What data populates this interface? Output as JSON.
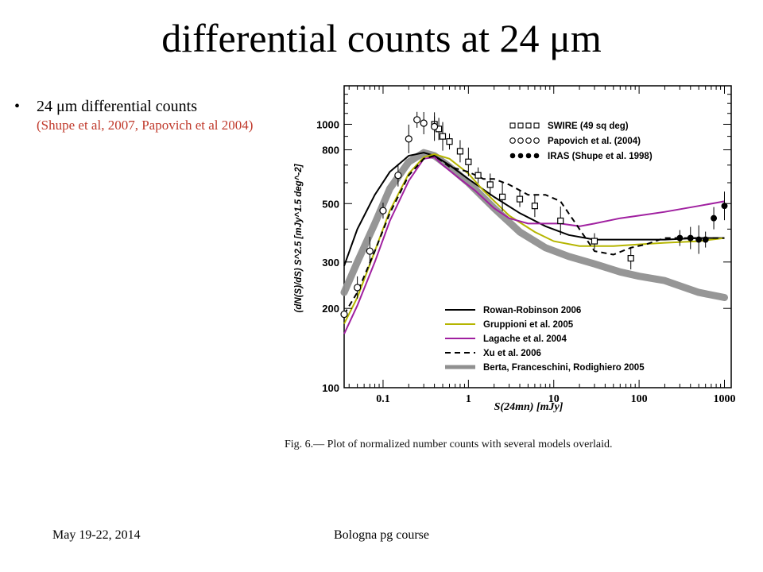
{
  "slide": {
    "title": "differential counts at 24 μm",
    "bullet": "24 μm differential counts",
    "citation": "(Shupe et al, 2007, Papovich et al 2004)",
    "footer_left": "May 19-22, 2014",
    "footer_center": "Bologna pg course",
    "caption": "Fig. 6.— Plot of normalized number counts with several models overlaid.",
    "bullet_glyph": "•"
  },
  "chart_data": {
    "type": "line",
    "xlabel": "S(24mn) [mJy]",
    "ylabel": "(dN(S)/dS) S^2.5 [mJy^1.5 deg^-2]",
    "x_scale": "log",
    "y_scale": "log",
    "xlim": [
      0.035,
      1200
    ],
    "ylim": [
      100,
      1400
    ],
    "x_ticks": [
      0.1,
      1,
      10,
      100,
      1000
    ],
    "x_tick_labels": [
      "0.1",
      "1",
      "10",
      "100",
      "1000"
    ],
    "y_ticks": [
      100,
      200,
      300,
      500,
      800,
      1000
    ],
    "y_tick_labels": [
      "100",
      "200",
      "300",
      "500",
      "800",
      "1000"
    ],
    "series": [
      {
        "name": "Rowan-Robinson 2006",
        "color": "#000000",
        "style": "solid",
        "x": [
          0.035,
          0.05,
          0.08,
          0.12,
          0.2,
          0.3,
          0.4,
          0.6,
          1,
          2,
          4,
          8,
          15,
          30,
          60,
          100,
          200,
          500,
          1000
        ],
        "y": [
          290,
          400,
          540,
          660,
          760,
          780,
          760,
          700,
          620,
          530,
          460,
          410,
          380,
          365,
          365,
          365,
          365,
          370,
          370
        ]
      },
      {
        "name": "Gruppioni et al. 2005",
        "color": "#b5b500",
        "style": "solid",
        "x": [
          0.035,
          0.05,
          0.08,
          0.12,
          0.2,
          0.3,
          0.4,
          0.6,
          1,
          1.5,
          3,
          6,
          10,
          20,
          50,
          100,
          200,
          500,
          1000
        ],
        "y": [
          175,
          220,
          330,
          470,
          650,
          750,
          770,
          740,
          650,
          560,
          450,
          390,
          360,
          345,
          345,
          350,
          355,
          360,
          370
        ]
      },
      {
        "name": "Lagache et al. 2004",
        "color": "#a020a0",
        "style": "solid",
        "x": [
          0.035,
          0.05,
          0.08,
          0.12,
          0.2,
          0.3,
          0.4,
          0.5,
          0.8,
          1.2,
          2,
          3,
          5,
          8,
          12,
          20,
          30,
          60,
          100,
          200,
          500,
          1000
        ],
        "y": [
          160,
          205,
          300,
          430,
          610,
          740,
          750,
          700,
          620,
          560,
          480,
          440,
          420,
          420,
          420,
          410,
          420,
          440,
          450,
          465,
          490,
          510
        ]
      },
      {
        "name": "Xu et al. 2006",
        "color": "#000000",
        "style": "dashed",
        "x": [
          0.035,
          0.05,
          0.08,
          0.12,
          0.2,
          0.3,
          0.4,
          0.6,
          1,
          1.5,
          2,
          3,
          5,
          8,
          12,
          20,
          30,
          50,
          80,
          120,
          200,
          500,
          1000
        ],
        "y": [
          190,
          230,
          330,
          460,
          640,
          740,
          760,
          690,
          660,
          620,
          620,
          590,
          540,
          540,
          510,
          400,
          330,
          320,
          340,
          350,
          370,
          370,
          370
        ]
      },
      {
        "name": "Berta, Franceschini, Rodighiero 2005",
        "color": "#909090",
        "style": "band",
        "x": [
          0.035,
          0.05,
          0.08,
          0.12,
          0.2,
          0.3,
          0.4,
          0.6,
          1,
          2,
          4,
          8,
          15,
          30,
          60,
          100,
          200,
          500,
          1000
        ],
        "y": [
          230,
          300,
          420,
          570,
          720,
          780,
          760,
          690,
          600,
          480,
          390,
          340,
          315,
          295,
          275,
          265,
          255,
          230,
          220
        ]
      },
      {
        "name": "SWIRE (49 sq deg)",
        "color": "#000000",
        "style": "open-square",
        "x": [
          0.4,
          0.45,
          0.5,
          0.6,
          0.8,
          1.0,
          1.3,
          1.8,
          2.5,
          4,
          6,
          12,
          30,
          80
        ],
        "y": [
          1000,
          960,
          900,
          860,
          790,
          720,
          640,
          590,
          530,
          520,
          490,
          430,
          360,
          310
        ]
      },
      {
        "name": "Papovich et al. (2004)",
        "color": "#000000",
        "style": "open-circle",
        "x": [
          0.035,
          0.05,
          0.07,
          0.1,
          0.15,
          0.2,
          0.25,
          0.3,
          0.4
        ],
        "y": [
          190,
          240,
          330,
          470,
          640,
          880,
          1040,
          1010,
          980
        ]
      },
      {
        "name": "IRAS (Shupe et al. 1998)",
        "color": "#000000",
        "style": "filled-circle",
        "x": [
          300,
          400,
          500,
          600,
          750,
          1000
        ],
        "y": [
          370,
          370,
          365,
          365,
          440,
          490
        ]
      }
    ],
    "legend_markers": [
      {
        "label": "SWIRE (49 sq deg)",
        "marker": "open-square"
      },
      {
        "label": "Papovich et al. (2004)",
        "marker": "open-circle"
      },
      {
        "label": "IRAS (Shupe et al. 1998)",
        "marker": "filled-circle"
      }
    ],
    "legend_lines": [
      {
        "label": "Rowan-Robinson 2006",
        "color": "#000000",
        "style": "solid"
      },
      {
        "label": "Gruppioni et al. 2005",
        "color": "#b5b500",
        "style": "solid"
      },
      {
        "label": "Lagache et al. 2004",
        "color": "#a020a0",
        "style": "solid"
      },
      {
        "label": "Xu et al. 2006",
        "color": "#000000",
        "style": "dashed"
      },
      {
        "label": "Berta, Franceschini, Rodighiero 2005",
        "color": "#909090",
        "style": "band"
      }
    ],
    "grid": false,
    "legend_placement": "top-right and bottom-right"
  }
}
